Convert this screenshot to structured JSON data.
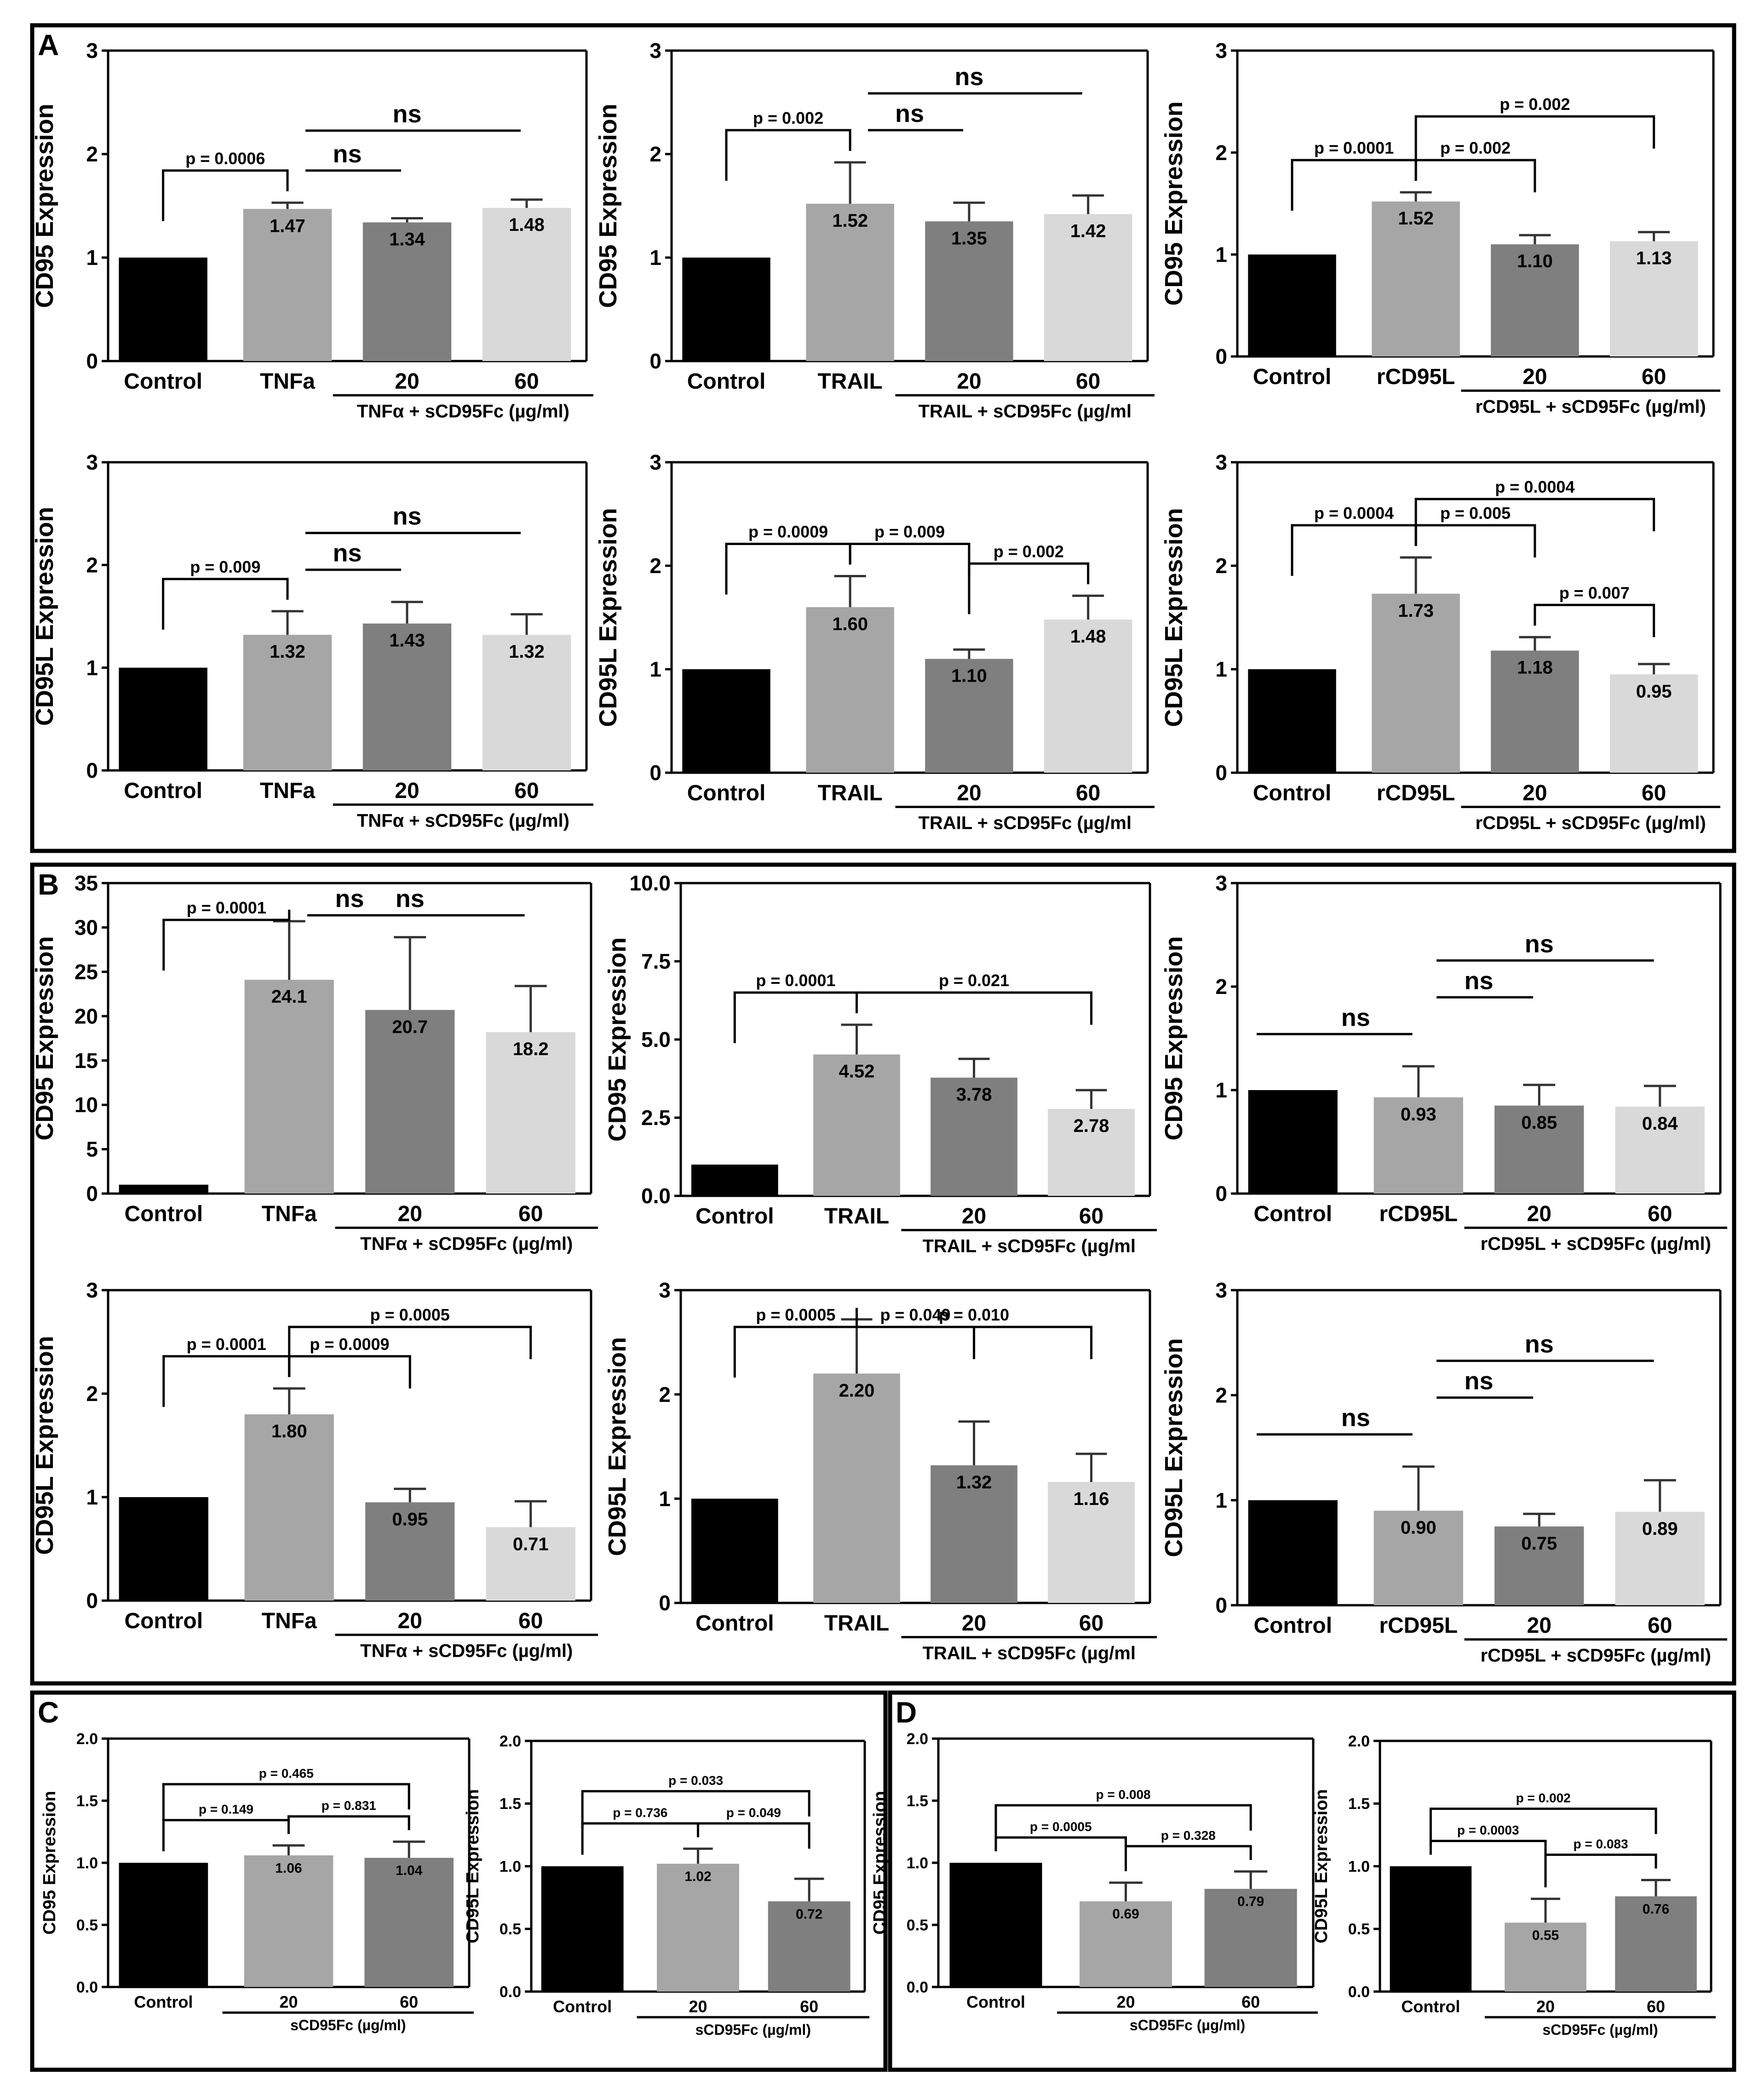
{
  "colors": {
    "black": "#000000",
    "dark_gray": "#7f7f7f",
    "mid_gray": "#a6a6a6",
    "light_gray": "#d9d9d9"
  },
  "panel_letters": [
    "A",
    "B",
    "C",
    "D"
  ],
  "chart_data": [
    {
      "type": "bar",
      "panel": "A",
      "ylabel": "CD95 Expression",
      "ylim": [
        0,
        3
      ],
      "yticks": [
        "0",
        "1",
        "2",
        "3"
      ],
      "categories": [
        "Control",
        "TNFa",
        "20",
        "60"
      ],
      "values": [
        1,
        1.47,
        1.34,
        1.48
      ],
      "errors": [
        0,
        0.06,
        0.04,
        0.08
      ],
      "value_labels": [
        "",
        "1.47",
        "1.34",
        "1.48"
      ],
      "group_label": "TNFα + sCD95Fc (µg/ml)",
      "brackets": [
        {
          "from": 0,
          "to": 1,
          "label": "p = 0.0006"
        }
      ],
      "lines": [
        {
          "from": 1,
          "to": 2,
          "label": "ns"
        },
        {
          "from": 1,
          "to": 3,
          "label": "ns"
        }
      ]
    },
    {
      "type": "bar",
      "panel": "A",
      "ylabel": "CD95 Expression",
      "ylim": [
        0,
        3
      ],
      "yticks": [
        "0",
        "1",
        "2",
        "3"
      ],
      "categories": [
        "Control",
        "TRAIL",
        "20",
        "60"
      ],
      "values": [
        1,
        1.52,
        1.35,
        1.42
      ],
      "errors": [
        0,
        0.4,
        0.18,
        0.18
      ],
      "value_labels": [
        "",
        "1.52",
        "1.35",
        "1.42"
      ],
      "group_label": "TRAIL + sCD95Fc (µg/ml",
      "brackets": [
        {
          "from": 0,
          "to": 1,
          "label": "p = 0.002"
        }
      ],
      "lines": [
        {
          "from": 1,
          "to": 2,
          "label": "ns"
        },
        {
          "from": 1,
          "to": 3,
          "label": "ns"
        }
      ]
    },
    {
      "type": "bar",
      "panel": "A",
      "ylabel": "CD95 Expression",
      "ylim": [
        0,
        3
      ],
      "yticks": [
        "0",
        "1",
        "2",
        "3"
      ],
      "categories": [
        "Control",
        "rCD95L",
        "20",
        "60"
      ],
      "values": [
        1,
        1.52,
        1.1,
        1.13
      ],
      "errors": [
        0,
        0.09,
        0.09,
        0.09
      ],
      "value_labels": [
        "",
        "1.52",
        "1.10",
        "1.13"
      ],
      "group_label": "rCD95L + sCD95Fc (µg/ml)",
      "brackets": [
        {
          "from": 0,
          "to": 1,
          "label": "p = 0.0001"
        },
        {
          "from": 1,
          "to": 2,
          "label": "p = 0.002"
        },
        {
          "from": 1,
          "to": 3,
          "label": "p = 0.002"
        }
      ],
      "lines": []
    },
    {
      "type": "bar",
      "panel": "A",
      "ylabel": "CD95L Expression",
      "ylim": [
        0,
        3
      ],
      "yticks": [
        "0",
        "1",
        "2",
        "3"
      ],
      "categories": [
        "Control",
        "TNFa",
        "20",
        "60"
      ],
      "values": [
        1,
        1.32,
        1.43,
        1.32
      ],
      "errors": [
        0,
        0.23,
        0.21,
        0.2
      ],
      "value_labels": [
        "",
        "1.32",
        "1.43",
        "1.32"
      ],
      "group_label": "TNFα + sCD95Fc (µg/ml)",
      "brackets": [
        {
          "from": 0,
          "to": 1,
          "label": "p = 0.009"
        }
      ],
      "lines": [
        {
          "from": 1,
          "to": 2,
          "label": "ns"
        },
        {
          "from": 1,
          "to": 3,
          "label": "ns"
        }
      ]
    },
    {
      "type": "bar",
      "panel": "A",
      "ylabel": "CD95L Expression",
      "ylim": [
        0,
        3
      ],
      "yticks": [
        "0",
        "1",
        "2",
        "3"
      ],
      "categories": [
        "Control",
        "TRAIL",
        "20",
        "60"
      ],
      "values": [
        1,
        1.6,
        1.1,
        1.48
      ],
      "errors": [
        0,
        0.3,
        0.09,
        0.23
      ],
      "value_labels": [
        "",
        "1.60",
        "1.10",
        "1.48"
      ],
      "group_label": "TRAIL + sCD95Fc (µg/ml",
      "brackets": [
        {
          "from": 0,
          "to": 1,
          "label": "p = 0.0009"
        },
        {
          "from": 1,
          "to": 2,
          "label": "p = 0.009"
        },
        {
          "from": 2,
          "to": 3,
          "label": "p = 0.002"
        }
      ],
      "lines": []
    },
    {
      "type": "bar",
      "panel": "A",
      "ylabel": "CD95L Expression",
      "ylim": [
        0,
        3
      ],
      "yticks": [
        "0",
        "1",
        "2",
        "3"
      ],
      "categories": [
        "Control",
        "rCD95L",
        "20",
        "60"
      ],
      "values": [
        1,
        1.73,
        1.18,
        0.95
      ],
      "errors": [
        0,
        0.35,
        0.13,
        0.1
      ],
      "value_labels": [
        "",
        "1.73",
        "1.18",
        "0.95"
      ],
      "group_label": "rCD95L + sCD95Fc (µg/ml)",
      "brackets": [
        {
          "from": 0,
          "to": 1,
          "label": "p = 0.0004"
        },
        {
          "from": 1,
          "to": 2,
          "label": "p = 0.005"
        },
        {
          "from": 2,
          "to": 3,
          "label": "p = 0.007"
        },
        {
          "from": 1,
          "to": 3,
          "label": "p = 0.0004"
        }
      ],
      "lines": []
    },
    {
      "type": "bar",
      "panel": "B",
      "ylabel": "CD95 Expression",
      "ylim": [
        0,
        35
      ],
      "yticks": [
        "0",
        "5",
        "10",
        "15",
        "20",
        "25",
        "30",
        "35"
      ],
      "categories": [
        "Control",
        "TNFa",
        "20",
        "60"
      ],
      "values": [
        1,
        24.1,
        20.7,
        18.2
      ],
      "errors": [
        0,
        6.6,
        8.2,
        5.2
      ],
      "value_labels": [
        "",
        "24.1",
        "20.7",
        "18.2"
      ],
      "group_label": "TNFα + sCD95Fc (µg/ml)",
      "brackets": [
        {
          "from": 0,
          "to": 1,
          "label": "p = 0.0001"
        }
      ],
      "lines": [
        {
          "from": 1,
          "to": 2,
          "label": "ns"
        },
        {
          "from": 1,
          "to": 3,
          "label": "ns"
        }
      ]
    },
    {
      "type": "bar",
      "panel": "B",
      "ylabel": "CD95 Expression",
      "ylim": [
        0,
        10
      ],
      "yticks": [
        "0.0",
        "2.5",
        "5.0",
        "7.5",
        "10.0"
      ],
      "categories": [
        "Control",
        "TRAIL",
        "20",
        "60"
      ],
      "values": [
        1,
        4.52,
        3.78,
        2.78
      ],
      "errors": [
        0,
        0.95,
        0.6,
        0.6
      ],
      "value_labels": [
        "",
        "4.52",
        "3.78",
        "2.78"
      ],
      "group_label": "TRAIL + sCD95Fc (µg/ml",
      "brackets": [
        {
          "from": 0,
          "to": 1,
          "label": "p = 0.0001"
        },
        {
          "from": 1,
          "to": 3,
          "label": "p = 0.021"
        }
      ],
      "lines": []
    },
    {
      "type": "bar",
      "panel": "B",
      "ylabel": "CD95 Expression",
      "ylim": [
        0,
        3
      ],
      "yticks": [
        "0",
        "1",
        "2",
        "3"
      ],
      "categories": [
        "Control",
        "rCD95L",
        "20",
        "60"
      ],
      "values": [
        1,
        0.93,
        0.85,
        0.84
      ],
      "errors": [
        0,
        0.3,
        0.2,
        0.2
      ],
      "value_labels": [
        "",
        "0.93",
        "0.85",
        "0.84"
      ],
      "group_label": "rCD95L + sCD95Fc (µg/ml)",
      "brackets": [],
      "lines": [
        {
          "from": 0,
          "to": 1,
          "label": "ns"
        },
        {
          "from": 1,
          "to": 2,
          "label": "ns"
        },
        {
          "from": 1,
          "to": 3,
          "label": "ns"
        }
      ]
    },
    {
      "type": "bar",
      "panel": "B",
      "ylabel": "CD95L Expression",
      "ylim": [
        0,
        3
      ],
      "yticks": [
        "0",
        "1",
        "2",
        "3"
      ],
      "categories": [
        "Control",
        "TNFa",
        "20",
        "60"
      ],
      "values": [
        1,
        1.8,
        0.95,
        0.71
      ],
      "errors": [
        0,
        0.25,
        0.13,
        0.25
      ],
      "value_labels": [
        "",
        "1.80",
        "0.95",
        "0.71"
      ],
      "group_label": "TNFα + sCD95Fc (µg/ml)",
      "brackets": [
        {
          "from": 0,
          "to": 1,
          "label": "p = 0.0001"
        },
        {
          "from": 1,
          "to": 2,
          "label": "p = 0.0009"
        },
        {
          "from": 1,
          "to": 3,
          "label": "p = 0.0005"
        }
      ],
      "lines": []
    },
    {
      "type": "bar",
      "panel": "B",
      "ylabel": "CD95L Expression",
      "ylim": [
        0,
        3
      ],
      "yticks": [
        "0",
        "1",
        "2",
        "3"
      ],
      "categories": [
        "Control",
        "TRAIL",
        "20",
        "60"
      ],
      "values": [
        1,
        2.2,
        1.32,
        1.16
      ],
      "errors": [
        0,
        0.52,
        0.42,
        0.27
      ],
      "value_labels": [
        "",
        "2.20",
        "1.32",
        "1.16"
      ],
      "group_label": "TRAIL + sCD95Fc (µg/ml",
      "brackets": [
        {
          "from": 0,
          "to": 1,
          "label": "p = 0.0005"
        },
        {
          "from": 1,
          "to": 2,
          "label": "p = 0.049"
        },
        {
          "from": 1,
          "to": 3,
          "label": "p = 0.010"
        }
      ],
      "lines": []
    },
    {
      "type": "bar",
      "panel": "B",
      "ylabel": "CD95L Expression",
      "ylim": [
        0,
        3
      ],
      "yticks": [
        "0",
        "1",
        "2",
        "3"
      ],
      "categories": [
        "Control",
        "rCD95L",
        "20",
        "60"
      ],
      "values": [
        1,
        0.9,
        0.75,
        0.89
      ],
      "errors": [
        0,
        0.42,
        0.12,
        0.3
      ],
      "value_labels": [
        "",
        "0.90",
        "0.75",
        "0.89"
      ],
      "group_label": "rCD95L + sCD95Fc (µg/ml)",
      "brackets": [],
      "lines": [
        {
          "from": 0,
          "to": 1,
          "label": "ns"
        },
        {
          "from": 1,
          "to": 2,
          "label": "ns"
        },
        {
          "from": 1,
          "to": 3,
          "label": "ns"
        }
      ]
    },
    {
      "type": "bar",
      "panel": "C",
      "ylabel": "CD95 Expression",
      "ylim": [
        0,
        2
      ],
      "yticks": [
        "0.0",
        "0.5",
        "1.0",
        "1.5",
        "2.0"
      ],
      "categories": [
        "Control",
        "20",
        "60"
      ],
      "values": [
        1,
        1.06,
        1.04
      ],
      "errors": [
        0,
        0.08,
        0.13
      ],
      "value_labels": [
        "",
        "1.06",
        "1.04"
      ],
      "group_label": "sCD95Fc (µg/ml)",
      "brackets": [
        {
          "from": 0,
          "to": 1,
          "label": "p = 0.149"
        },
        {
          "from": 1,
          "to": 2,
          "label": "p = 0.831"
        },
        {
          "from": 0,
          "to": 2,
          "label": "p = 0.465"
        }
      ],
      "lines": []
    },
    {
      "type": "bar",
      "panel": "C",
      "ylabel": "CD95L Expression",
      "ylim": [
        0,
        2
      ],
      "yticks": [
        "0.0",
        "0.5",
        "1.0",
        "1.5",
        "2.0"
      ],
      "categories": [
        "Control",
        "20",
        "60"
      ],
      "values": [
        1,
        1.02,
        0.72
      ],
      "errors": [
        0,
        0.12,
        0.18
      ],
      "value_labels": [
        "",
        "1.02",
        "0.72"
      ],
      "group_label": "sCD95Fc (µg/ml)",
      "brackets": [
        {
          "from": 0,
          "to": 1,
          "label": "p = 0.736"
        },
        {
          "from": 1,
          "to": 2,
          "label": "p = 0.049"
        },
        {
          "from": 0,
          "to": 2,
          "label": "p = 0.033"
        }
      ],
      "lines": []
    },
    {
      "type": "bar",
      "panel": "D",
      "ylabel": "CD95 Expression",
      "ylim": [
        0,
        2
      ],
      "yticks": [
        "0.0",
        "0.5",
        "1.0",
        "1.5",
        "2.0"
      ],
      "categories": [
        "Control",
        "20",
        "60"
      ],
      "values": [
        1,
        0.69,
        0.79
      ],
      "errors": [
        0,
        0.15,
        0.14
      ],
      "value_labels": [
        "",
        "0.69",
        "0.79"
      ],
      "group_label": "sCD95Fc (µg/ml)",
      "brackets": [
        {
          "from": 0,
          "to": 1,
          "label": "p = 0.0005"
        },
        {
          "from": 1,
          "to": 2,
          "label": "p = 0.328"
        },
        {
          "from": 0,
          "to": 2,
          "label": "p = 0.008"
        }
      ],
      "lines": []
    },
    {
      "type": "bar",
      "panel": "D",
      "ylabel": "CD95L Expression",
      "ylim": [
        0,
        2
      ],
      "yticks": [
        "0.0",
        "0.5",
        "1.0",
        "1.5",
        "2.0"
      ],
      "categories": [
        "Control",
        "20",
        "60"
      ],
      "values": [
        1,
        0.55,
        0.76
      ],
      "errors": [
        0,
        0.19,
        0.13
      ],
      "value_labels": [
        "",
        "0.55",
        "0.76"
      ],
      "group_label": "sCD95Fc (µg/ml)",
      "brackets": [
        {
          "from": 0,
          "to": 1,
          "label": "p = 0.0003"
        },
        {
          "from": 1,
          "to": 2,
          "label": "p = 0.083"
        },
        {
          "from": 0,
          "to": 2,
          "label": "p = 0.002"
        }
      ],
      "lines": []
    }
  ]
}
